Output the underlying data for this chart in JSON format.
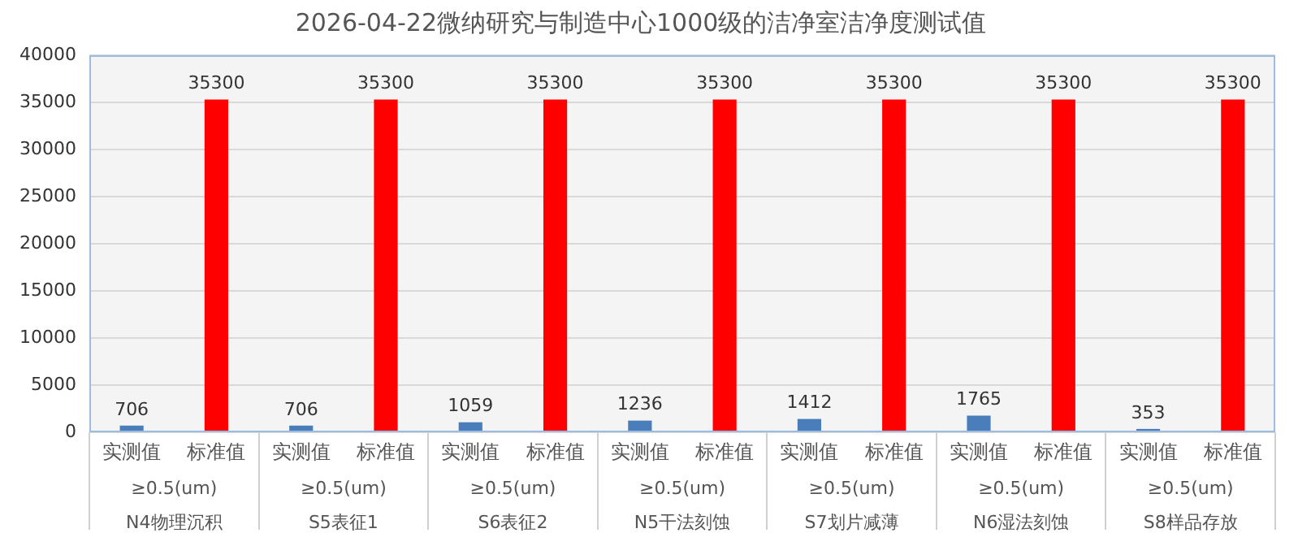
{
  "chart_data": {
    "type": "bar",
    "title": "2026-04-22微纳研究与制造中心1000级的洁净室洁净度测试值",
    "categories": [
      "≥0.5(um)\nN4物理沉积",
      "≥0.5(um)\nS5表征1",
      "≥0.5(um)\nS6表征2",
      "≥0.5(um)\nN5干法刻蚀",
      "≥0.5(um)\nS7划片减薄",
      "≥0.5(um)\nN6湿法刻蚀",
      "≥0.5(um)\nS8样品存放"
    ],
    "series": [
      {
        "name": "实测值",
        "color": "#4a7ebb",
        "values": [
          706,
          706,
          1059,
          1236,
          1412,
          1765,
          353
        ]
      },
      {
        "name": "标准值",
        "color": "#ff0000",
        "values": [
          35300,
          35300,
          35300,
          35300,
          35300,
          35300,
          35300
        ]
      }
    ],
    "ylim": [
      0,
      40000
    ],
    "yticks": [
      0,
      5000,
      10000,
      15000,
      20000,
      25000,
      30000,
      35000,
      40000
    ],
    "grid": "y",
    "legend": false,
    "data_labels": true
  }
}
